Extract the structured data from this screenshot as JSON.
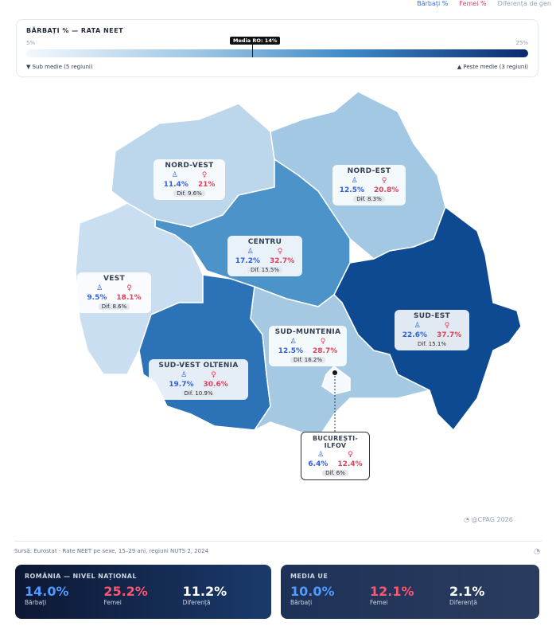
{
  "legend": {
    "men": "Bărbați %",
    "women": "Femei %",
    "gap": "Diferența de gen"
  },
  "scale": {
    "title": "BĂRBAȚI % — RATA NEET",
    "min": "5%",
    "max": "25%",
    "marker": "Media RO: 14%",
    "marker_value": 14,
    "below": "▼ Sub medie (5 regiuni)",
    "above": "▲ Peste medie (3 regiuni)"
  },
  "regions": [
    {
      "name": "NORD-VEST",
      "men": "11.4%",
      "women": "21%",
      "diff": "Dif. 9.6%",
      "color": "#bcd6eb"
    },
    {
      "name": "NORD-EST",
      "men": "12.5%",
      "women": "20.8%",
      "diff": "Dif. 8.3%",
      "color": "#a3c8e3"
    },
    {
      "name": "CENTRU",
      "men": "17.2%",
      "women": "32.7%",
      "diff": "Dif. 15.5%",
      "color": "#4b93c8"
    },
    {
      "name": "VEST",
      "men": "9.5%",
      "women": "18.1%",
      "diff": "Dif. 8.6%",
      "color": "#c9def0"
    },
    {
      "name": "SUD-VEST OLTENIA",
      "men": "19.7%",
      "women": "30.6%",
      "diff": "Dif. 10.9%",
      "color": "#2c72b6"
    },
    {
      "name": "SUD-MUNTENIA",
      "men": "12.5%",
      "women": "28.7%",
      "diff": "Dif. 16.2%",
      "color": "#a6c9e3"
    },
    {
      "name": "SUD-EST",
      "men": "22.6%",
      "women": "37.7%",
      "diff": "Dif. 15.1%",
      "color": "#0e4a92"
    },
    {
      "name": "BUCUREȘTI-ILFOV",
      "men": "6.4%",
      "women": "12.4%",
      "diff": "Dif. 6%",
      "color": "#f5f9fd"
    }
  ],
  "copyright": "@CPAG 2026",
  "source": "Sursă: Eurostat - Rate NEET pe sexe, 15–29 ani, regiuni NUTS 2, 2024",
  "national": {
    "title": "ROMÂNIA — NIVEL NAȚIONAL",
    "men": "14.0%",
    "men_label": "Bărbați",
    "women": "25.2%",
    "women_label": "Femei",
    "diff": "11.2%",
    "diff_label": "Diferență"
  },
  "eu": {
    "title": "MEDIA UE",
    "men": "10.0%",
    "men_label": "Bărbați",
    "women": "12.1%",
    "women_label": "Femei",
    "diff": "2.1%",
    "diff_label": "Diferență"
  }
}
